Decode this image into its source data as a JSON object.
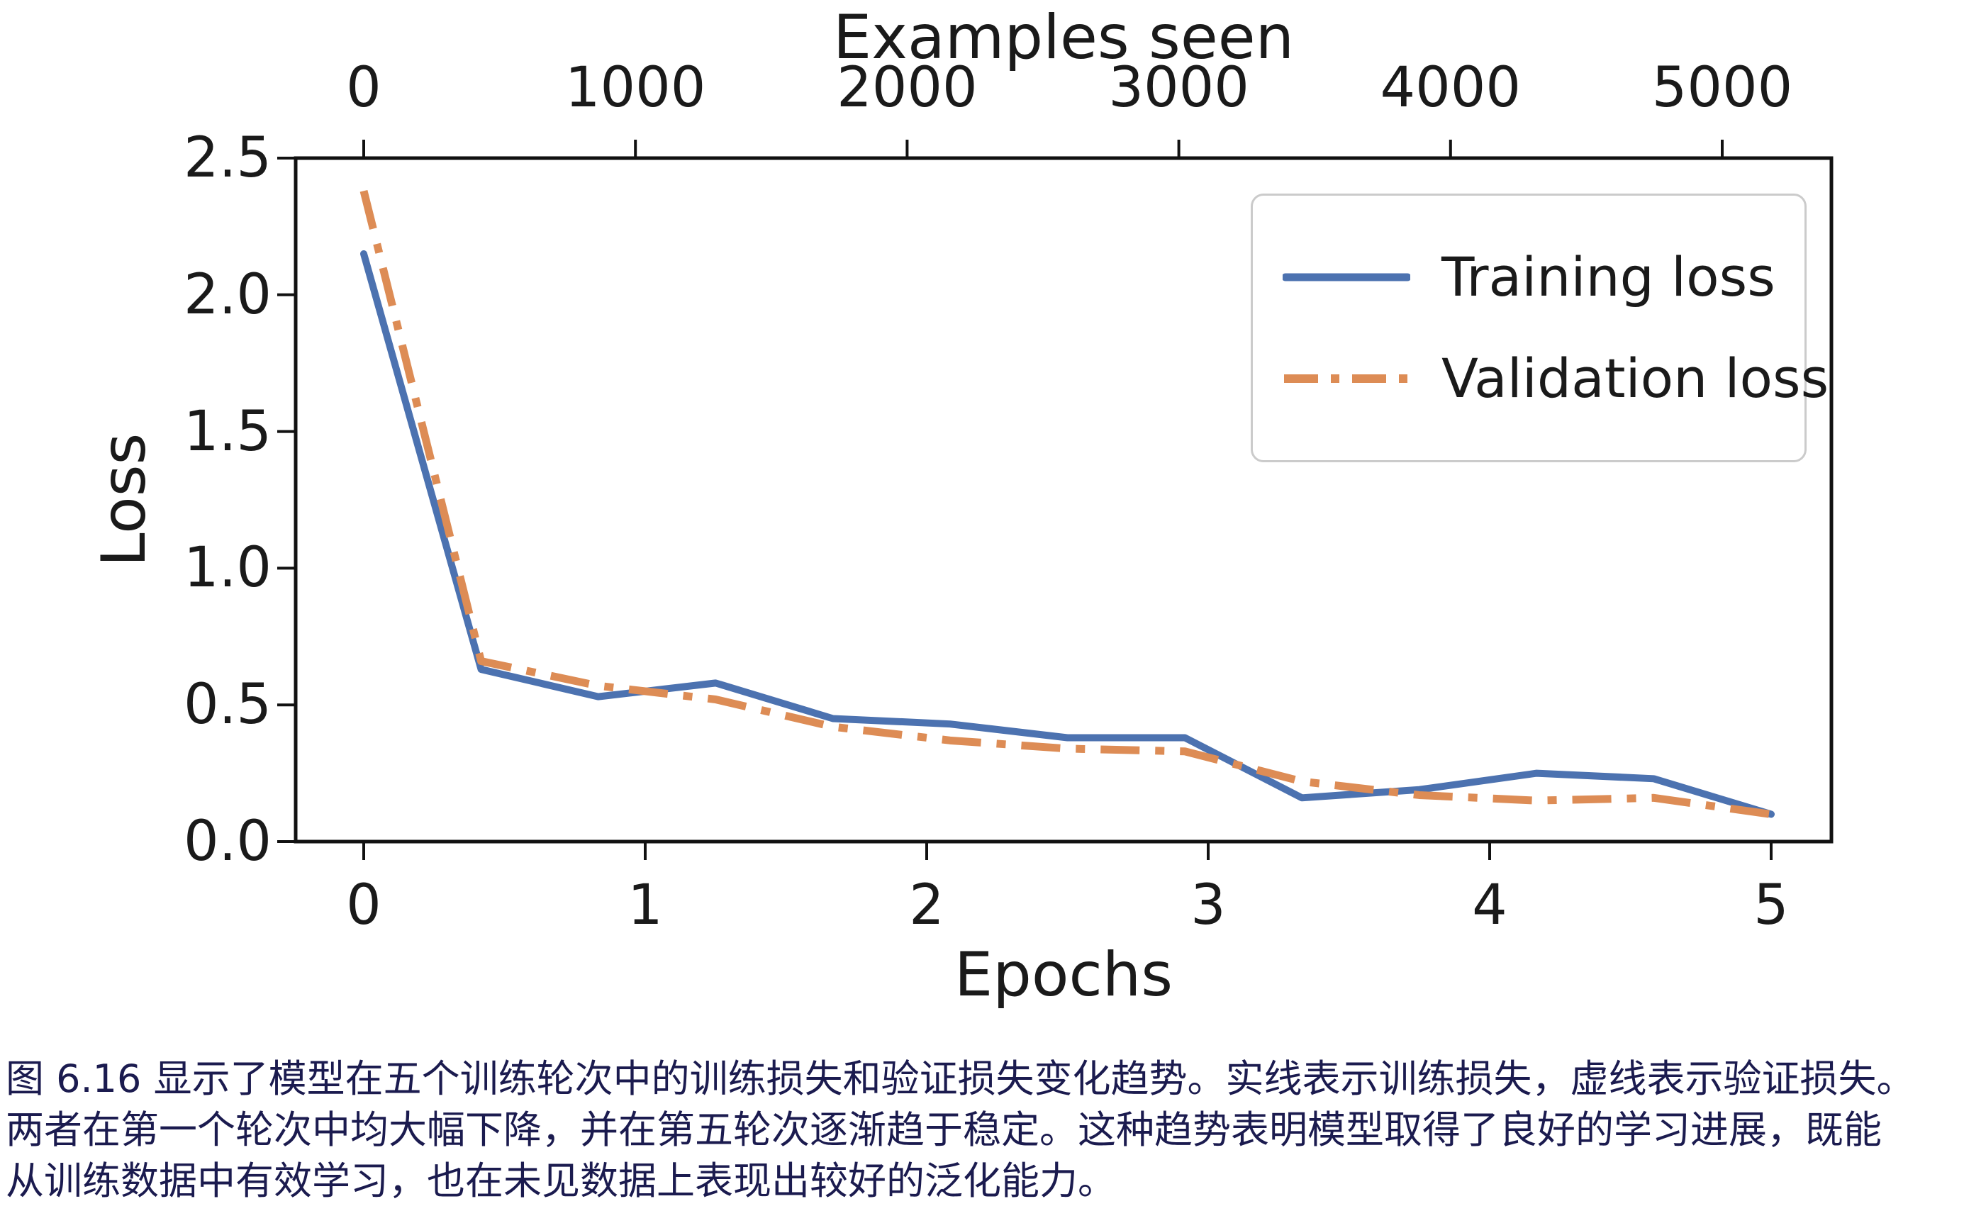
{
  "figure": {
    "top_axis_title": "Examples seen",
    "bottom_axis_title": "Epochs",
    "y_axis_title": "Loss",
    "legend": {
      "training_label": "Training loss",
      "validation_label": "Validation loss"
    }
  },
  "chart_data": {
    "type": "line",
    "xlabel": "Epochs",
    "ylabel": "Loss",
    "top_xlabel": "Examples seen",
    "x_ticks_bottom": [
      0,
      1,
      2,
      3,
      4,
      5
    ],
    "x_ticks_top_examples": [
      0,
      1000,
      2000,
      3000,
      4000,
      5000
    ],
    "y_ticks": [
      "0.0",
      "0.5",
      "1.0",
      "1.5",
      "2.0",
      "2.5"
    ],
    "ylim": [
      0.0,
      2.5
    ],
    "xlim_epochs": [
      -0.24,
      5.21
    ],
    "grid": false,
    "legend_position": "upper right",
    "x_epochs": [
      0,
      0.417,
      0.833,
      1.25,
      1.667,
      2.083,
      2.5,
      2.917,
      3.333,
      3.75,
      4.167,
      4.583,
      5.0
    ],
    "series": [
      {
        "name": "Training loss",
        "style": "solid",
        "color": "#4c72b0",
        "values": [
          2.15,
          0.63,
          0.53,
          0.58,
          0.45,
          0.43,
          0.38,
          0.38,
          0.16,
          0.19,
          0.25,
          0.23,
          0.1
        ]
      },
      {
        "name": "Validation loss",
        "style": "dashdot",
        "color": "#dd8c55",
        "values": [
          2.38,
          0.66,
          0.57,
          0.52,
          0.42,
          0.37,
          0.34,
          0.33,
          0.22,
          0.17,
          0.15,
          0.16,
          0.1
        ]
      }
    ]
  },
  "caption": {
    "color": "#1b1b4f",
    "lines": [
      "图 6.16 显示了模型在五个训练轮次中的训练损失和验证损失变化趋势。实线表示训练损失，虚线表示验证损失。",
      "两者在第一个轮次中均大幅下降，并在第五轮次逐渐趋于稳定。这种趋势表明模型取得了良好的学习进展，既能",
      "从训练数据中有效学习，也在未见数据上表现出较好的泛化能力。"
    ]
  }
}
